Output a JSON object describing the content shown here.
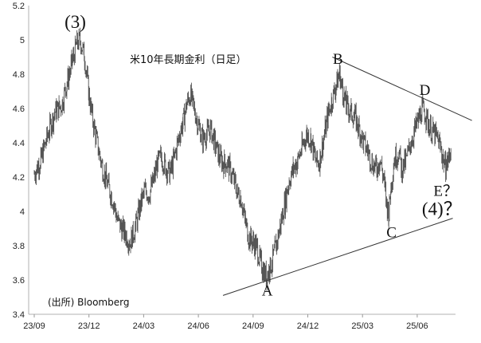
{
  "chart_data": {
    "type": "line",
    "title": "米10年長期金利（日足）",
    "source": "(出所) Bloomberg",
    "ylim": [
      3.4,
      5.2
    ],
    "y_ticks": [
      "3.4",
      "3.6",
      "3.8",
      "4",
      "4.2",
      "4.4",
      "4.6",
      "4.8",
      "5",
      "5.2"
    ],
    "x_ticks": [
      "23/09",
      "23/12",
      "24/03",
      "24/06",
      "24/09",
      "24/12",
      "25/03",
      "25/06"
    ],
    "grid": false,
    "series": [
      {
        "values": [
          [
            0.0,
            4.22
          ],
          [
            0.12,
            4.3
          ],
          [
            0.25,
            4.45
          ],
          [
            0.38,
            4.58
          ],
          [
            0.5,
            4.62
          ],
          [
            0.6,
            4.75
          ],
          [
            0.7,
            4.88
          ],
          [
            0.78,
            4.98
          ],
          [
            0.84,
            5.0
          ],
          [
            0.92,
            4.9
          ],
          [
            1.0,
            4.68
          ],
          [
            1.06,
            4.55
          ],
          [
            1.12,
            4.45
          ],
          [
            1.18,
            4.35
          ],
          [
            1.25,
            4.25
          ],
          [
            1.32,
            4.18
          ],
          [
            1.38,
            4.12
          ],
          [
            1.45,
            4.05
          ],
          [
            1.52,
            3.95
          ],
          [
            1.6,
            3.9
          ],
          [
            1.68,
            3.86
          ],
          [
            1.75,
            3.82
          ],
          [
            1.82,
            3.88
          ],
          [
            1.88,
            3.95
          ],
          [
            1.95,
            4.05
          ],
          [
            2.02,
            4.12
          ],
          [
            2.1,
            4.1
          ],
          [
            2.18,
            4.18
          ],
          [
            2.25,
            4.28
          ],
          [
            2.32,
            4.32
          ],
          [
            2.4,
            4.26
          ],
          [
            2.48,
            4.22
          ],
          [
            2.55,
            4.3
          ],
          [
            2.62,
            4.4
          ],
          [
            2.68,
            4.48
          ],
          [
            2.72,
            4.52
          ],
          [
            2.78,
            4.62
          ],
          [
            2.85,
            4.68
          ],
          [
            2.92,
            4.6
          ],
          [
            3.0,
            4.5
          ],
          [
            3.08,
            4.42
          ],
          [
            3.15,
            4.45
          ],
          [
            3.22,
            4.48
          ],
          [
            3.3,
            4.4
          ],
          [
            3.38,
            4.32
          ],
          [
            3.45,
            4.28
          ],
          [
            3.52,
            4.28
          ],
          [
            3.58,
            4.24
          ],
          [
            3.65,
            4.18
          ],
          [
            3.72,
            4.1
          ],
          [
            3.78,
            4.08
          ],
          [
            3.85,
            3.95
          ],
          [
            3.92,
            3.85
          ],
          [
            4.0,
            3.82
          ],
          [
            4.06,
            3.8
          ],
          [
            4.12,
            3.72
          ],
          [
            4.18,
            3.66
          ],
          [
            4.24,
            3.62
          ],
          [
            4.3,
            3.66
          ],
          [
            4.36,
            3.72
          ],
          [
            4.42,
            3.8
          ],
          [
            4.5,
            3.92
          ],
          [
            4.58,
            4.05
          ],
          [
            4.66,
            4.18
          ],
          [
            4.74,
            4.25
          ],
          [
            4.82,
            4.3
          ],
          [
            4.9,
            4.38
          ],
          [
            4.98,
            4.45
          ],
          [
            5.06,
            4.42
          ],
          [
            5.14,
            4.3
          ],
          [
            5.2,
            4.28
          ],
          [
            5.28,
            4.4
          ],
          [
            5.36,
            4.55
          ],
          [
            5.44,
            4.65
          ],
          [
            5.52,
            4.74
          ],
          [
            5.58,
            4.8
          ],
          [
            5.64,
            4.7
          ],
          [
            5.7,
            4.62
          ],
          [
            5.78,
            4.58
          ],
          [
            5.86,
            4.55
          ],
          [
            5.94,
            4.48
          ],
          [
            6.02,
            4.4
          ],
          [
            6.1,
            4.35
          ],
          [
            6.18,
            4.28
          ],
          [
            6.26,
            4.25
          ],
          [
            6.32,
            4.3
          ],
          [
            6.38,
            4.2
          ],
          [
            6.44,
            4.05
          ],
          [
            6.48,
            3.98
          ],
          [
            6.52,
            4.15
          ],
          [
            6.58,
            4.3
          ],
          [
            6.66,
            4.35
          ],
          [
            6.72,
            4.25
          ],
          [
            6.8,
            4.3
          ],
          [
            6.88,
            4.4
          ],
          [
            6.96,
            4.48
          ],
          [
            7.04,
            4.55
          ],
          [
            7.1,
            4.6
          ],
          [
            7.16,
            4.55
          ],
          [
            7.24,
            4.48
          ],
          [
            7.32,
            4.45
          ],
          [
            7.4,
            4.4
          ],
          [
            7.46,
            4.32
          ],
          [
            7.52,
            4.25
          ],
          [
            7.58,
            4.32
          ],
          [
            7.62,
            4.38
          ]
        ]
      }
    ],
    "trendlines": [
      {
        "name": "upper",
        "x": [
          5.45,
          8.0
        ],
        "y": [
          4.9,
          4.53
        ]
      },
      {
        "name": "lower",
        "x": [
          3.45,
          7.65
        ],
        "y": [
          3.51,
          3.96
        ]
      }
    ],
    "annotations": [
      {
        "label": "(3)",
        "x": 0.75,
        "y": 5.07
      },
      {
        "label": "A",
        "x": 4.26,
        "y": 3.51
      },
      {
        "label": "B",
        "x": 5.55,
        "y": 4.86
      },
      {
        "label": "C",
        "x": 6.53,
        "y": 3.85
      },
      {
        "label": "D",
        "x": 7.14,
        "y": 4.68
      },
      {
        "label": "E？",
        "x": 7.52,
        "y": 4.09
      },
      {
        "label": "(4)？",
        "x": 7.45,
        "y": 3.98
      }
    ]
  }
}
